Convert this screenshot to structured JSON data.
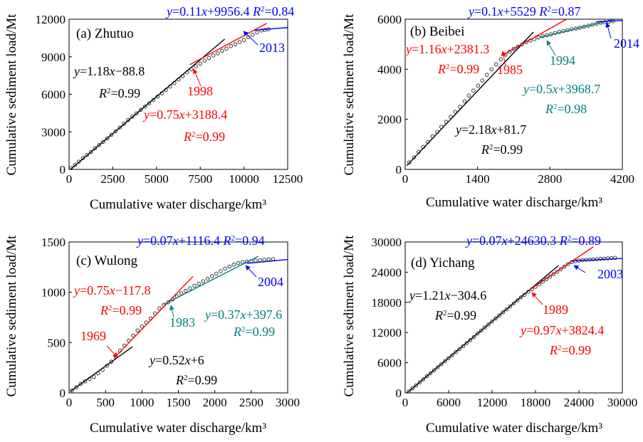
{
  "colors": {
    "black": "#000000",
    "red": "#ff0000",
    "blue": "#0000ff",
    "teal": "#008080"
  },
  "chart_data": [
    {
      "type": "scatter",
      "panel_label": "(a) Zhutuo",
      "xlabel": "Cumulative water discharge/km³",
      "ylabel": "Cumulative sediment load/Mt",
      "xlim": [
        0,
        12500
      ],
      "ylim": [
        0,
        12000
      ],
      "xticks": [
        0,
        2500,
        5000,
        7500,
        10000,
        12500
      ],
      "yticks": [
        0,
        3000,
        6000,
        9000,
        12000
      ],
      "points": [
        [
          110,
          100
        ],
        [
          340,
          350
        ],
        [
          560,
          620
        ],
        [
          790,
          900
        ],
        [
          1020,
          1150
        ],
        [
          1250,
          1400
        ],
        [
          1480,
          1680
        ],
        [
          1720,
          1950
        ],
        [
          1950,
          2200
        ],
        [
          2190,
          2480
        ],
        [
          2420,
          2760
        ],
        [
          2660,
          3050
        ],
        [
          2900,
          3350
        ],
        [
          3140,
          3650
        ],
        [
          3380,
          3950
        ],
        [
          3620,
          4230
        ],
        [
          3860,
          4480
        ],
        [
          4100,
          4760
        ],
        [
          4340,
          5020
        ],
        [
          4580,
          5290
        ],
        [
          4820,
          5560
        ],
        [
          5060,
          5820
        ],
        [
          5300,
          6080
        ],
        [
          5540,
          6350
        ],
        [
          5780,
          6620
        ],
        [
          6020,
          6900
        ],
        [
          6260,
          7180
        ],
        [
          6500,
          7450
        ],
        [
          6750,
          7750
        ],
        [
          7000,
          8000
        ],
        [
          7250,
          8250
        ],
        [
          7500,
          8450
        ],
        [
          7750,
          8700
        ],
        [
          8000,
          8900
        ],
        [
          8250,
          9100
        ],
        [
          8500,
          9280
        ],
        [
          8750,
          9480
        ],
        [
          9000,
          9650
        ],
        [
          9250,
          9850
        ],
        [
          9500,
          10000
        ],
        [
          9750,
          10180
        ],
        [
          10000,
          10350
        ],
        [
          10250,
          10560
        ],
        [
          10500,
          10750
        ],
        [
          10750,
          10950
        ],
        [
          11000,
          11100
        ],
        [
          11200,
          11150
        ],
        [
          11400,
          11200
        ]
      ],
      "fits": [
        {
          "equation": "y=1.18x−88.8",
          "r2": "R²=0.99",
          "slope": 1.18,
          "intercept": -88.8,
          "x_range": [
            0,
            8900
          ],
          "color": "black"
        },
        {
          "equation": "y=0.75x+3188.4",
          "r2": "R²=0.99",
          "slope": 0.75,
          "intercept": 3188.4,
          "x_range": [
            6900,
            11300
          ],
          "color": "red"
        },
        {
          "equation": "y=0.11x+9956.4",
          "r2": "R²=0.84",
          "slope": 0.11,
          "intercept": 9956.4,
          "x_range": [
            10600,
            12900
          ],
          "color": "blue"
        }
      ],
      "breakpoints": [
        {
          "label": "1998",
          "x": 7000,
          "y": 8400,
          "color": "red"
        },
        {
          "label": "2013",
          "x": 10900,
          "y": 11150,
          "color": "blue"
        }
      ]
    },
    {
      "type": "scatter",
      "panel_label": "(b) Beibei",
      "xlabel": "Cumulative water discharge/km³",
      "ylabel": "Cumulative sediment load/Mt",
      "xlim": [
        0,
        4200
      ],
      "ylim": [
        0,
        6000
      ],
      "xticks": [
        0,
        1400,
        2800,
        4200
      ],
      "yticks": [
        0,
        2000,
        4000,
        6000
      ],
      "points": [
        [
          80,
          280
        ],
        [
          170,
          480
        ],
        [
          260,
          700
        ],
        [
          350,
          900
        ],
        [
          440,
          1100
        ],
        [
          530,
          1320
        ],
        [
          620,
          1500
        ],
        [
          700,
          1700
        ],
        [
          790,
          1900
        ],
        [
          880,
          2100
        ],
        [
          970,
          2300
        ],
        [
          1060,
          2500
        ],
        [
          1150,
          2720
        ],
        [
          1230,
          2950
        ],
        [
          1320,
          3150
        ],
        [
          1410,
          3350
        ],
        [
          1490,
          3550
        ],
        [
          1580,
          3780
        ],
        [
          1670,
          4000
        ],
        [
          1760,
          4200
        ],
        [
          1850,
          4400
        ],
        [
          1940,
          4580
        ],
        [
          2020,
          4700
        ],
        [
          2100,
          4820
        ],
        [
          2180,
          4900
        ],
        [
          2260,
          4990
        ],
        [
          2340,
          5080
        ],
        [
          2420,
          5150
        ],
        [
          2500,
          5210
        ],
        [
          2580,
          5270
        ],
        [
          2660,
          5320
        ],
        [
          2740,
          5360
        ],
        [
          2820,
          5400
        ],
        [
          2900,
          5450
        ],
        [
          2980,
          5490
        ],
        [
          3060,
          5530
        ],
        [
          3140,
          5560
        ],
        [
          3220,
          5600
        ],
        [
          3300,
          5630
        ],
        [
          3380,
          5660
        ],
        [
          3460,
          5700
        ],
        [
          3540,
          5740
        ],
        [
          3620,
          5780
        ],
        [
          3700,
          5820
        ],
        [
          3780,
          5860
        ],
        [
          3860,
          5880
        ],
        [
          3940,
          5900
        ],
        [
          4020,
          5920
        ]
      ],
      "fits": [
        {
          "equation": "y=2.18x+81.7",
          "r2": "R²=0.99",
          "slope": 2.18,
          "intercept": 81.7,
          "x_range": [
            30,
            2480
          ],
          "color": "black"
        },
        {
          "equation": "y=1.16x+2381.3",
          "r2": "R²=0.99",
          "slope": 1.16,
          "intercept": 2381.3,
          "x_range": [
            1900,
            3120
          ],
          "color": "red"
        },
        {
          "equation": "y=0.5x+3968.7",
          "r2": "R²=0.98",
          "slope": 0.5,
          "intercept": 3968.7,
          "x_range": [
            2600,
            4050
          ],
          "color": "teal"
        },
        {
          "equation": "y=0.1x+5529",
          "r2": "R²=0.87",
          "slope": 0.1,
          "intercept": 5529,
          "x_range": [
            3700,
            4260
          ],
          "color": "blue"
        }
      ],
      "breakpoints": [
        {
          "label": "1985",
          "x": 2020,
          "y": 4700,
          "color": "red"
        },
        {
          "label": "1994",
          "x": 2820,
          "y": 5380,
          "color": "teal"
        },
        {
          "label": "2014",
          "x": 3900,
          "y": 5900,
          "color": "blue"
        }
      ]
    },
    {
      "type": "scatter",
      "panel_label": "(c) Wulong",
      "xlabel": "Cumulative water discharge/km³",
      "ylabel": "Cumulative sediment load/Mt",
      "xlim": [
        0,
        3000
      ],
      "ylim": [
        0,
        1500
      ],
      "xticks": [
        0,
        500,
        1000,
        1500,
        2000,
        2500,
        3000
      ],
      "yticks": [
        0,
        500,
        1000,
        1500
      ],
      "points": [
        [
          40,
          25
        ],
        [
          100,
          55
        ],
        [
          160,
          90
        ],
        [
          220,
          115
        ],
        [
          280,
          140
        ],
        [
          340,
          160
        ],
        [
          400,
          195
        ],
        [
          460,
          230
        ],
        [
          520,
          270
        ],
        [
          580,
          310
        ],
        [
          640,
          360
        ],
        [
          700,
          420
        ],
        [
          760,
          470
        ],
        [
          820,
          520
        ],
        [
          880,
          570
        ],
        [
          940,
          620
        ],
        [
          1000,
          660
        ],
        [
          1060,
          700
        ],
        [
          1120,
          740
        ],
        [
          1180,
          790
        ],
        [
          1240,
          840
        ],
        [
          1300,
          875
        ],
        [
          1360,
          900
        ],
        [
          1420,
          930
        ],
        [
          1480,
          960
        ],
        [
          1540,
          990
        ],
        [
          1600,
          1015
        ],
        [
          1660,
          1040
        ],
        [
          1720,
          1065
        ],
        [
          1780,
          1085
        ],
        [
          1840,
          1110
        ],
        [
          1900,
          1135
        ],
        [
          1960,
          1160
        ],
        [
          2020,
          1185
        ],
        [
          2080,
          1210
        ],
        [
          2140,
          1235
        ],
        [
          2200,
          1255
        ],
        [
          2260,
          1275
        ],
        [
          2320,
          1290
        ],
        [
          2380,
          1300
        ],
        [
          2440,
          1305
        ],
        [
          2500,
          1310
        ],
        [
          2560,
          1315
        ],
        [
          2620,
          1320
        ],
        [
          2680,
          1325
        ],
        [
          2740,
          1328
        ],
        [
          2800,
          1330
        ]
      ],
      "fits": [
        {
          "equation": "y=0.52x+6",
          "r2": "R²=0.99",
          "slope": 0.52,
          "intercept": 6,
          "x_range": [
            20,
            870
          ],
          "color": "black"
        },
        {
          "equation": "y=0.75x−117.8",
          "r2": "R²=0.99",
          "slope": 0.75,
          "intercept": -117.8,
          "x_range": [
            620,
            1700
          ],
          "color": "red"
        },
        {
          "equation": "y=0.37x+397.6",
          "r2": "R²=0.99",
          "slope": 0.37,
          "intercept": 397.6,
          "x_range": [
            1300,
            2600
          ],
          "color": "teal"
        },
        {
          "equation": "y=0.07x+1116.4",
          "r2": "R²=0.94",
          "slope": 0.07,
          "intercept": 1116.4,
          "x_range": [
            2450,
            3280
          ],
          "color": "blue"
        }
      ],
      "breakpoints": [
        {
          "label": "1969",
          "x": 680,
          "y": 390,
          "color": "red"
        },
        {
          "label": "1983",
          "x": 1360,
          "y": 900,
          "color": "teal"
        },
        {
          "label": "2004",
          "x": 2430,
          "y": 1305,
          "color": "blue"
        }
      ]
    },
    {
      "type": "scatter",
      "panel_label": "(d) Yichang",
      "xlabel": "Cumulative water discharge/km³",
      "ylabel": "Cumulative sediment load/Mt",
      "xlim": [
        0,
        30000
      ],
      "ylim": [
        0,
        30000
      ],
      "xticks": [
        0,
        6000,
        12000,
        18000,
        24000,
        30000
      ],
      "yticks": [
        0,
        6000,
        12000,
        18000,
        24000,
        30000
      ],
      "points": [
        [
          500,
          300
        ],
        [
          1000,
          900
        ],
        [
          1500,
          1500
        ],
        [
          2000,
          2100
        ],
        [
          2500,
          2700
        ],
        [
          3000,
          3300
        ],
        [
          3500,
          3900
        ],
        [
          4000,
          4500
        ],
        [
          4500,
          5100
        ],
        [
          5000,
          5700
        ],
        [
          5500,
          6300
        ],
        [
          6000,
          6900
        ],
        [
          6500,
          7500
        ],
        [
          7000,
          8100
        ],
        [
          7500,
          8700
        ],
        [
          8000,
          9300
        ],
        [
          8500,
          9900
        ],
        [
          9000,
          10500
        ],
        [
          9500,
          11100
        ],
        [
          10000,
          11800
        ],
        [
          10500,
          12400
        ],
        [
          11000,
          13000
        ],
        [
          11500,
          13600
        ],
        [
          12000,
          14200
        ],
        [
          12500,
          14800
        ],
        [
          13000,
          15400
        ],
        [
          13500,
          16000
        ],
        [
          14000,
          16600
        ],
        [
          14500,
          17200
        ],
        [
          15000,
          17800
        ],
        [
          15500,
          18400
        ],
        [
          16000,
          19000
        ],
        [
          16500,
          19500
        ],
        [
          17000,
          20100
        ],
        [
          17500,
          20600
        ],
        [
          18000,
          21100
        ],
        [
          18500,
          21600
        ],
        [
          19000,
          22100
        ],
        [
          19500,
          22600
        ],
        [
          20000,
          23100
        ],
        [
          20500,
          23600
        ],
        [
          21000,
          24100
        ],
        [
          21500,
          24600
        ],
        [
          22000,
          25100
        ],
        [
          22500,
          25600
        ],
        [
          23000,
          26000
        ],
        [
          23500,
          26200
        ],
        [
          24000,
          26300
        ],
        [
          24500,
          26400
        ],
        [
          25000,
          26450
        ],
        [
          25500,
          26500
        ],
        [
          26000,
          26550
        ],
        [
          26500,
          26600
        ],
        [
          27000,
          26650
        ],
        [
          27500,
          26700
        ],
        [
          28000,
          26750
        ],
        [
          28500,
          26800
        ],
        [
          29000,
          26850
        ]
      ],
      "fits": [
        {
          "equation": "y=1.21x−304.6",
          "r2": "R²=0.99",
          "slope": 1.21,
          "intercept": -304.6,
          "x_range": [
            0,
            21200
          ],
          "color": "black"
        },
        {
          "equation": "y=0.97x+3824.4",
          "r2": "R²=0.99",
          "slope": 0.97,
          "intercept": 3824.4,
          "x_range": [
            17200,
            26000
          ],
          "color": "red"
        },
        {
          "equation": "y=0.07x+24630.3",
          "r2": "R²=0.89",
          "slope": 0.07,
          "intercept": 24630.3,
          "x_range": [
            23000,
            30800
          ],
          "color": "blue"
        }
      ],
      "breakpoints": [
        {
          "label": "1989",
          "x": 17400,
          "y": 20500,
          "color": "red"
        },
        {
          "label": "2003",
          "x": 23300,
          "y": 26100,
          "color": "blue"
        }
      ]
    }
  ]
}
